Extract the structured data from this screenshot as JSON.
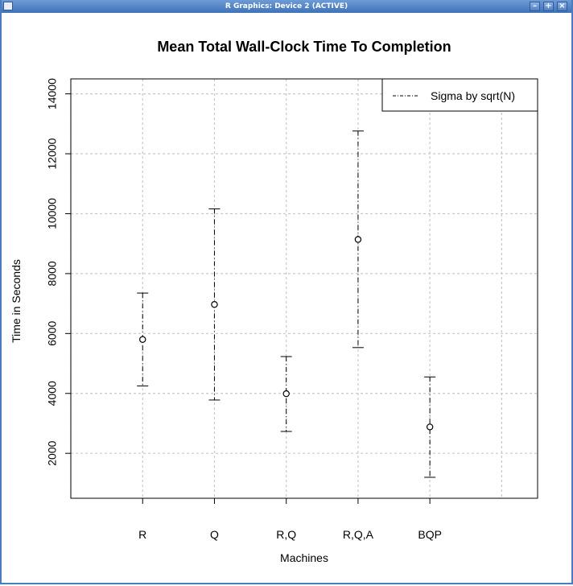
{
  "window": {
    "title": "R Graphics: Device 2 (ACTIVE)",
    "buttons": {
      "minimize": "–",
      "maximize": "+",
      "close": "×"
    }
  },
  "chart_data": {
    "type": "scatter",
    "title": "Mean Total Wall-Clock Time To Completion",
    "xlabel": "Machines",
    "ylabel": "Time in Seconds",
    "categories": [
      "R",
      "Q",
      "R,Q",
      "R,Q,A",
      "BQP"
    ],
    "values": [
      5800,
      6970,
      3990,
      9140,
      2880
    ],
    "error_low": [
      4250,
      3780,
      2730,
      5530,
      1200
    ],
    "error_high": [
      7350,
      10160,
      5230,
      12760,
      4550
    ],
    "yticks": [
      2000,
      4000,
      6000,
      8000,
      10000,
      12000,
      14000
    ],
    "ylim": [
      500,
      14500
    ],
    "xlim": [
      -1,
      5.5
    ],
    "grid": true,
    "legend": {
      "position": "top-right",
      "entries": [
        "Sigma by sqrt(N)"
      ]
    }
  }
}
